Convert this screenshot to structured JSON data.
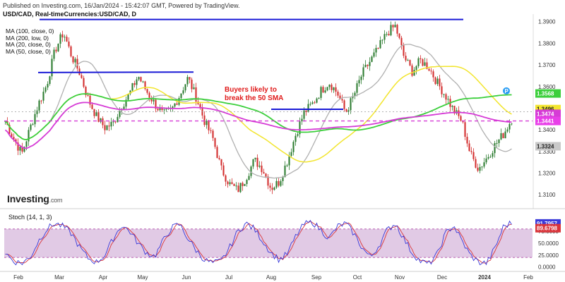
{
  "header": {
    "published": "Published on Investing.com, 16/Jan/2024 - 15:42:07 GMT, Powered by TradingView.",
    "instrument": "USD/CAD, Real-timeCurrencies:USD/CAD, D"
  },
  "legend": [
    "MA (100, close, 0)",
    "MA (200, low, 0)",
    "MA (20, close, 0)",
    "MA (50, close, 0)"
  ],
  "watermark": {
    "brand": "Investing",
    "suffix": ".com"
  },
  "annotation": "Buyers likely to break the 50 SMA",
  "indicator_label": "Stoch (14, 1, 3)",
  "badges": {
    "price_main": "1.3496",
    "ma_green": "1.3568",
    "ma_pink": "1.3474",
    "ma_dash": "1.3441",
    "ma_gray": "1.3324",
    "stoch_blue": "91.7957",
    "stoch_red": "89.6798",
    "marker": "P"
  },
  "colors": {
    "candle_up": "#2e7d32",
    "candle_down": "#d32f2f",
    "ma20": "#b0b0b0",
    "ma50": "#f2e52e",
    "ma100": "#3ccf3c",
    "ma200": "#d63bd6",
    "trendline": "#1a1ad6",
    "dashed_level": "#d63bd6",
    "stoch_k": "#3a3ad9",
    "stoch_d": "#d9343a",
    "stoch_band": "#d7b8dc"
  },
  "chart_data": [
    {
      "type": "candlestick",
      "title": "USD/CAD, Real-timeCurrencies:USD/CAD, D",
      "x_labels": [
        "Feb",
        "Mar",
        "Apr",
        "May",
        "Jun",
        "Jul",
        "Aug",
        "Sep",
        "Oct",
        "Nov",
        "Dec",
        "2024",
        "Feb"
      ],
      "y_ticks": [
        1.31,
        1.32,
        1.33,
        1.34,
        1.35,
        1.36,
        1.37,
        1.38,
        1.39
      ],
      "ylim": [
        1.3055,
        1.3935
      ],
      "grid": false,
      "ohlc_path": [
        1.344,
        1.336,
        1.329,
        1.341,
        1.352,
        1.361,
        1.377,
        1.385,
        1.374,
        1.366,
        1.354,
        1.346,
        1.341,
        1.343,
        1.351,
        1.357,
        1.365,
        1.358,
        1.352,
        1.347,
        1.349,
        1.356,
        1.364,
        1.355,
        1.344,
        1.336,
        1.322,
        1.315,
        1.312,
        1.318,
        1.326,
        1.322,
        1.313,
        1.316,
        1.326,
        1.338,
        1.348,
        1.352,
        1.358,
        1.362,
        1.357,
        1.348,
        1.356,
        1.366,
        1.372,
        1.378,
        1.385,
        1.388,
        1.374,
        1.367,
        1.372,
        1.369,
        1.362,
        1.356,
        1.349,
        1.344,
        1.329,
        1.322,
        1.327,
        1.333,
        1.338,
        1.345
      ],
      "trendlines": [
        {
          "points": [
            [
              "Feb",
              1.391
            ],
            [
              "Jan 2024",
              1.391
            ]
          ]
        },
        {
          "points": [
            [
              "Feb",
              1.3665
            ],
            [
              "Jun",
              1.3667
            ]
          ]
        },
        {
          "points": [
            [
              "Aug",
              1.3495
            ],
            [
              "Sep",
              1.3495
            ]
          ]
        }
      ],
      "horizontal_levels": [
        1.3441
      ],
      "ma_last": {
        "MA (20, close, 0)": 1.3324,
        "MA (50, close, 0)": 1.3496,
        "MA (100, close, 0)": 1.3568,
        "MA (200, low, 0)": 1.3474
      }
    },
    {
      "type": "line",
      "title": "Stoch (14, 1, 3)",
      "y_ticks": [
        0.0,
        25.0,
        50.0,
        75.0
      ],
      "ylim": [
        -5,
        105
      ],
      "band": [
        20,
        80
      ],
      "series": [
        {
          "name": "%K",
          "last": 91.7957
        },
        {
          "name": "%D",
          "last": 89.6798
        }
      ],
      "k_path": [
        30,
        12,
        8,
        20,
        55,
        80,
        92,
        85,
        70,
        40,
        18,
        10,
        25,
        60,
        88,
        75,
        50,
        30,
        22,
        55,
        82,
        90,
        60,
        35,
        15,
        8,
        12,
        40,
        75,
        92,
        80,
        55,
        30,
        15,
        28,
        65,
        90,
        95,
        78,
        60,
        85,
        92,
        70,
        40,
        20,
        45,
        78,
        92,
        60,
        30,
        12,
        6,
        25,
        70,
        88,
        55,
        25,
        10,
        8,
        40,
        85,
        93
      ]
    }
  ]
}
